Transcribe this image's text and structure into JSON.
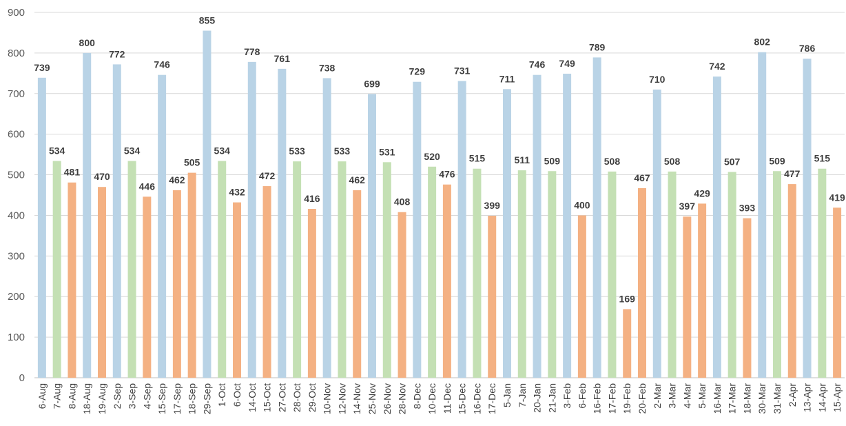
{
  "chart_data": {
    "type": "bar",
    "title": "",
    "xlabel": "",
    "ylabel": "",
    "ylim": [
      0,
      900
    ],
    "yticks": [
      0,
      100,
      200,
      300,
      400,
      500,
      600,
      700,
      800,
      900
    ],
    "grid": true,
    "legend": "none",
    "colors": {
      "blue": "#b9d3e6",
      "green": "#c4e0b4",
      "orange": "#f4b183",
      "grid": "#d9d9d9",
      "axis": "#bfbfbf",
      "label": "#404040"
    },
    "categories": [
      "6-Aug",
      "7-Aug",
      "8-Aug",
      "18-Aug",
      "19-Aug",
      "2-Sep",
      "3-Sep",
      "4-Sep",
      "15-Sep",
      "17-Sep",
      "18-Sep",
      "29-Sep",
      "1-Oct",
      "6-Oct",
      "14-Oct",
      "15-Oct",
      "27-Oct",
      "28-Oct",
      "29-Oct",
      "10-Nov",
      "12-Nov",
      "14-Nov",
      "25-Nov",
      "26-Nov",
      "28-Nov",
      "8-Dec",
      "10-Dec",
      "11-Dec",
      "15-Dec",
      "16-Dec",
      "17-Dec",
      "5-Jan",
      "7-Jan",
      "20-Jan",
      "21-Jan",
      "3-Feb",
      "6-Feb",
      "16-Feb",
      "17-Feb",
      "19-Feb",
      "20-Feb",
      "2-Mar",
      "3-Mar",
      "4-Mar",
      "5-Mar",
      "16-Mar",
      "17-Mar",
      "18-Mar",
      "30-Mar",
      "31-Mar",
      "2-Apr",
      "13-Apr",
      "14-Apr",
      "15-Apr"
    ],
    "values": [
      739,
      534,
      481,
      800,
      470,
      772,
      534,
      446,
      746,
      462,
      505,
      855,
      534,
      432,
      778,
      472,
      761,
      533,
      416,
      738,
      533,
      462,
      699,
      531,
      408,
      729,
      520,
      476,
      731,
      515,
      399,
      711,
      511,
      746,
      509,
      749,
      400,
      789,
      508,
      169,
      467,
      710,
      508,
      397,
      429,
      742,
      507,
      393,
      802,
      509,
      477,
      786,
      515,
      419
    ],
    "bar_colors": [
      "blue",
      "green",
      "orange",
      "blue",
      "orange",
      "blue",
      "green",
      "orange",
      "blue",
      "orange",
      "orange",
      "blue",
      "green",
      "orange",
      "blue",
      "orange",
      "blue",
      "green",
      "orange",
      "blue",
      "green",
      "orange",
      "blue",
      "green",
      "orange",
      "blue",
      "green",
      "orange",
      "blue",
      "green",
      "orange",
      "blue",
      "green",
      "blue",
      "green",
      "blue",
      "orange",
      "blue",
      "green",
      "orange",
      "orange",
      "blue",
      "green",
      "orange",
      "orange",
      "blue",
      "green",
      "orange",
      "blue",
      "green",
      "orange",
      "blue",
      "green",
      "orange"
    ]
  }
}
